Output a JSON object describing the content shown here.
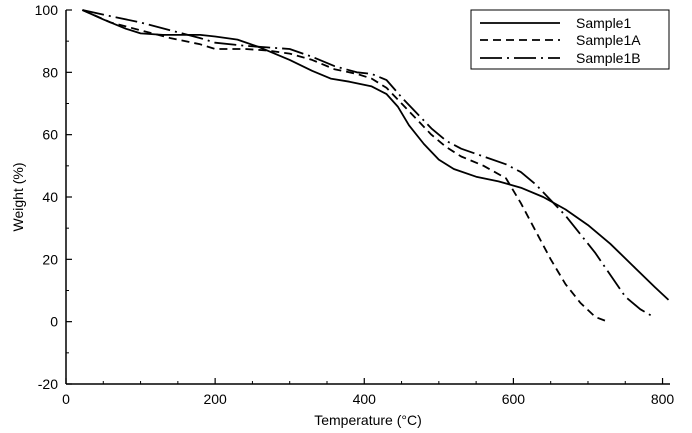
{
  "chart_data": {
    "type": "line",
    "title": "",
    "xlabel": "Temperature (°C)",
    "ylabel": "Weight (%)",
    "xlim": [
      0,
      810
    ],
    "ylim": [
      -20,
      100
    ],
    "xticks": [
      0,
      200,
      400,
      600,
      800
    ],
    "yticks": [
      -20,
      0,
      20,
      40,
      60,
      80,
      100
    ],
    "grid": false,
    "legend_position": "top-right",
    "series": [
      {
        "name": "Sample1",
        "style": "solid",
        "color": "#000000",
        "x": [
          22,
          50,
          80,
          100,
          130,
          160,
          180,
          200,
          230,
          260,
          300,
          330,
          355,
          380,
          410,
          430,
          445,
          460,
          480,
          500,
          520,
          550,
          580,
          610,
          640,
          670,
          700,
          730,
          760,
          790,
          808
        ],
        "y": [
          100,
          97,
          94,
          92.5,
          92,
          92,
          92,
          91.5,
          90.5,
          88,
          84,
          80.5,
          78,
          77,
          75.5,
          73,
          69,
          63,
          57,
          52,
          49,
          46.5,
          45,
          43,
          40,
          36,
          31,
          25,
          18,
          11,
          7
        ]
      },
      {
        "name": "Sample1A",
        "style": "dashed",
        "color": "#000000",
        "x": [
          22,
          60,
          100,
          140,
          180,
          200,
          240,
          270,
          300,
          330,
          360,
          390,
          410,
          430,
          450,
          470,
          490,
          510,
          530,
          560,
          590,
          610,
          630,
          650,
          670,
          690,
          710,
          723
        ],
        "y": [
          100,
          96,
          93.5,
          91,
          89,
          87.5,
          87.5,
          87,
          86,
          84,
          81,
          79.5,
          78,
          75,
          70,
          65,
          60,
          56,
          53,
          50,
          46,
          38,
          29,
          20,
          12,
          6,
          1.5,
          0.3
        ]
      },
      {
        "name": "Sample1B",
        "style": "dashdot",
        "color": "#000000",
        "x": [
          22,
          60,
          100,
          140,
          180,
          200,
          240,
          270,
          300,
          330,
          360,
          390,
          410,
          430,
          450,
          470,
          490,
          510,
          530,
          560,
          590,
          610,
          630,
          650,
          670,
          690,
          710,
          730,
          750,
          770,
          788
        ],
        "y": [
          100,
          98,
          96,
          93.5,
          91,
          89.5,
          88.5,
          88,
          87.5,
          85,
          82,
          80,
          79.5,
          77.5,
          72,
          67,
          62,
          58,
          55.5,
          53,
          50.5,
          48,
          44,
          39,
          34,
          28,
          22,
          15,
          8,
          4,
          1.5
        ]
      }
    ]
  }
}
